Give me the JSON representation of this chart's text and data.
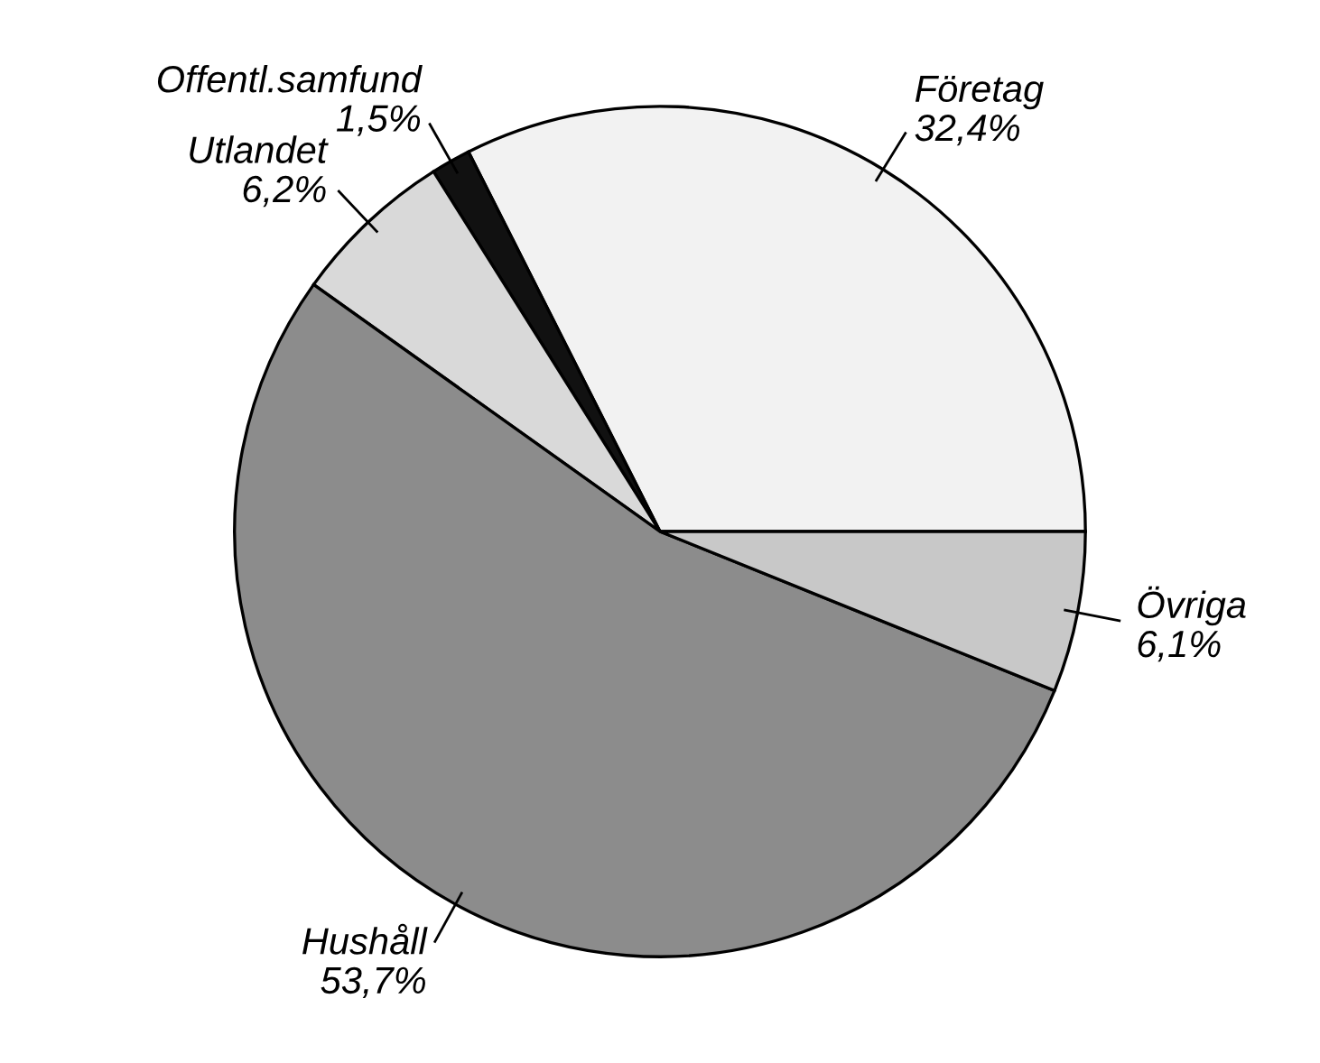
{
  "chart_data": {
    "type": "pie",
    "categories": [
      "Företag",
      "Offentl.samfund",
      "Utlandet",
      "Hushåll",
      "Övriga"
    ],
    "values": [
      32.4,
      1.5,
      6.2,
      53.7,
      6.1
    ],
    "value_labels": [
      "32,4%",
      "1,5%",
      "6,2%",
      "53,7%",
      "6,1%"
    ],
    "colors": [
      "#f2f2f2",
      "#111111",
      "#d9d9d9",
      "#8c8c8c",
      "#c8c8c8"
    ],
    "legend": false
  }
}
